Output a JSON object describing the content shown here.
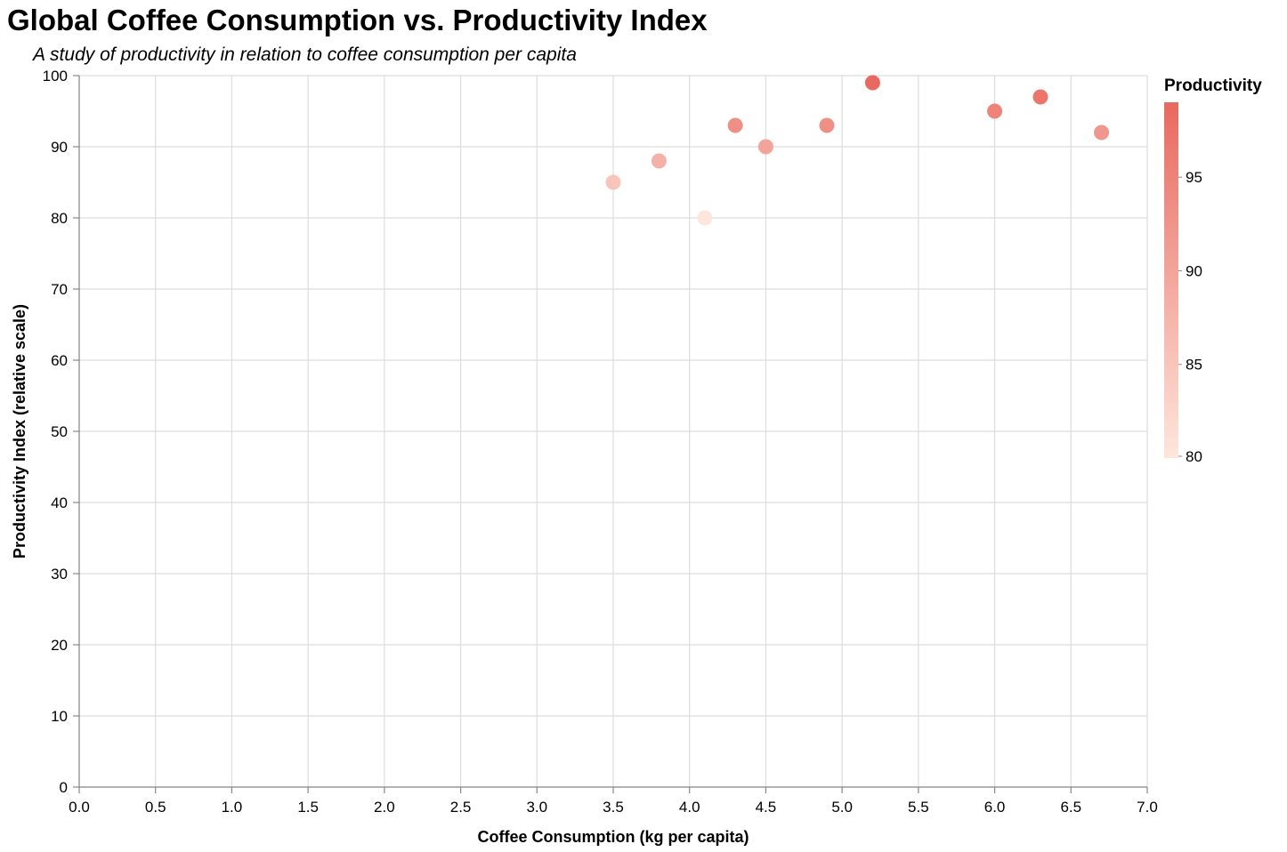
{
  "chart_data": {
    "type": "scatter",
    "title": "Global Coffee Consumption vs. Productivity Index",
    "subtitle": "A study of productivity in relation to coffee consumption per capita",
    "xlabel": "Coffee Consumption (kg per capita)",
    "ylabel": "Productivity Index (relative scale)",
    "xlim": [
      0,
      7
    ],
    "ylim": [
      0,
      100
    ],
    "x_ticks": [
      "0.0",
      "0.5",
      "1.0",
      "1.5",
      "2.0",
      "2.5",
      "3.0",
      "3.5",
      "4.0",
      "4.5",
      "5.0",
      "5.5",
      "6.0",
      "6.5",
      "7.0"
    ],
    "y_ticks": [
      "0",
      "10",
      "20",
      "30",
      "40",
      "50",
      "60",
      "70",
      "80",
      "90",
      "100"
    ],
    "grid": true,
    "legend": {
      "title": "Productivity",
      "type": "color-gradient",
      "placement": "right",
      "domain": [
        80,
        99
      ],
      "labels": [
        "95",
        "90",
        "85",
        "80"
      ],
      "color_low": "#fee6dc",
      "color_high": "#e8695f"
    },
    "points": [
      {
        "x": 3.5,
        "y": 85
      },
      {
        "x": 3.8,
        "y": 88
      },
      {
        "x": 4.1,
        "y": 80
      },
      {
        "x": 4.3,
        "y": 93
      },
      {
        "x": 4.5,
        "y": 90
      },
      {
        "x": 4.9,
        "y": 93
      },
      {
        "x": 5.2,
        "y": 99
      },
      {
        "x": 6.0,
        "y": 95
      },
      {
        "x": 6.3,
        "y": 97
      },
      {
        "x": 6.7,
        "y": 92
      }
    ]
  }
}
